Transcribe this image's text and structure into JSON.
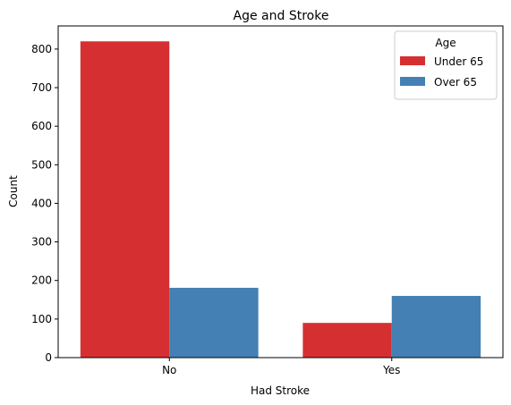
{
  "chart_data": {
    "type": "bar",
    "title": "Age and Stroke",
    "xlabel": "Had Stroke",
    "ylabel": "Count",
    "categories": [
      "No",
      "Yes"
    ],
    "series": [
      {
        "name": "Under 65",
        "values": [
          820,
          90
        ],
        "color": "#d62f31"
      },
      {
        "name": "Over 65",
        "values": [
          181,
          160
        ],
        "color": "#4480b3"
      }
    ],
    "ylim": [
      0,
      860
    ],
    "yticks": [
      0,
      100,
      200,
      300,
      400,
      500,
      600,
      700,
      800
    ],
    "legend": {
      "title": "Age",
      "position": "top-right"
    },
    "grid": false
  }
}
